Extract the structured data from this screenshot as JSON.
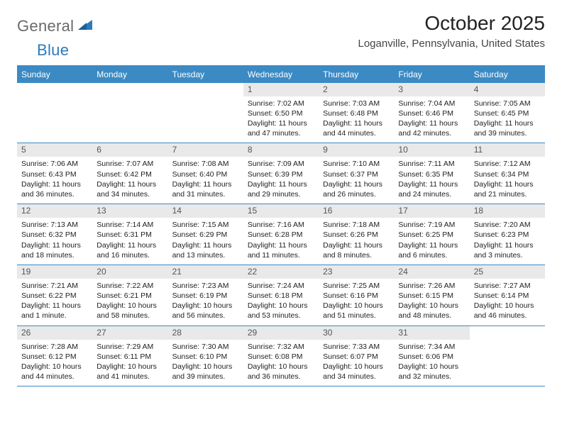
{
  "brand": {
    "word1": "General",
    "word2": "Blue"
  },
  "title": "October 2025",
  "location": "Loganville, Pennsylvania, United States",
  "colors": {
    "accent": "#3b8ac4",
    "header_bg": "#3b8ac4",
    "daynum_bg": "#e9e9e9",
    "text": "#222222",
    "logo_gray": "#6a6a6a",
    "logo_blue": "#2b7bbd"
  },
  "daysOfWeek": [
    "Sunday",
    "Monday",
    "Tuesday",
    "Wednesday",
    "Thursday",
    "Friday",
    "Saturday"
  ],
  "weeks": [
    [
      {
        "n": "",
        "sr": "",
        "ss": "",
        "dl": ""
      },
      {
        "n": "",
        "sr": "",
        "ss": "",
        "dl": ""
      },
      {
        "n": "",
        "sr": "",
        "ss": "",
        "dl": ""
      },
      {
        "n": "1",
        "sr": "Sunrise: 7:02 AM",
        "ss": "Sunset: 6:50 PM",
        "dl": "Daylight: 11 hours and 47 minutes."
      },
      {
        "n": "2",
        "sr": "Sunrise: 7:03 AM",
        "ss": "Sunset: 6:48 PM",
        "dl": "Daylight: 11 hours and 44 minutes."
      },
      {
        "n": "3",
        "sr": "Sunrise: 7:04 AM",
        "ss": "Sunset: 6:46 PM",
        "dl": "Daylight: 11 hours and 42 minutes."
      },
      {
        "n": "4",
        "sr": "Sunrise: 7:05 AM",
        "ss": "Sunset: 6:45 PM",
        "dl": "Daylight: 11 hours and 39 minutes."
      }
    ],
    [
      {
        "n": "5",
        "sr": "Sunrise: 7:06 AM",
        "ss": "Sunset: 6:43 PM",
        "dl": "Daylight: 11 hours and 36 minutes."
      },
      {
        "n": "6",
        "sr": "Sunrise: 7:07 AM",
        "ss": "Sunset: 6:42 PM",
        "dl": "Daylight: 11 hours and 34 minutes."
      },
      {
        "n": "7",
        "sr": "Sunrise: 7:08 AM",
        "ss": "Sunset: 6:40 PM",
        "dl": "Daylight: 11 hours and 31 minutes."
      },
      {
        "n": "8",
        "sr": "Sunrise: 7:09 AM",
        "ss": "Sunset: 6:39 PM",
        "dl": "Daylight: 11 hours and 29 minutes."
      },
      {
        "n": "9",
        "sr": "Sunrise: 7:10 AM",
        "ss": "Sunset: 6:37 PM",
        "dl": "Daylight: 11 hours and 26 minutes."
      },
      {
        "n": "10",
        "sr": "Sunrise: 7:11 AM",
        "ss": "Sunset: 6:35 PM",
        "dl": "Daylight: 11 hours and 24 minutes."
      },
      {
        "n": "11",
        "sr": "Sunrise: 7:12 AM",
        "ss": "Sunset: 6:34 PM",
        "dl": "Daylight: 11 hours and 21 minutes."
      }
    ],
    [
      {
        "n": "12",
        "sr": "Sunrise: 7:13 AM",
        "ss": "Sunset: 6:32 PM",
        "dl": "Daylight: 11 hours and 18 minutes."
      },
      {
        "n": "13",
        "sr": "Sunrise: 7:14 AM",
        "ss": "Sunset: 6:31 PM",
        "dl": "Daylight: 11 hours and 16 minutes."
      },
      {
        "n": "14",
        "sr": "Sunrise: 7:15 AM",
        "ss": "Sunset: 6:29 PM",
        "dl": "Daylight: 11 hours and 13 minutes."
      },
      {
        "n": "15",
        "sr": "Sunrise: 7:16 AM",
        "ss": "Sunset: 6:28 PM",
        "dl": "Daylight: 11 hours and 11 minutes."
      },
      {
        "n": "16",
        "sr": "Sunrise: 7:18 AM",
        "ss": "Sunset: 6:26 PM",
        "dl": "Daylight: 11 hours and 8 minutes."
      },
      {
        "n": "17",
        "sr": "Sunrise: 7:19 AM",
        "ss": "Sunset: 6:25 PM",
        "dl": "Daylight: 11 hours and 6 minutes."
      },
      {
        "n": "18",
        "sr": "Sunrise: 7:20 AM",
        "ss": "Sunset: 6:23 PM",
        "dl": "Daylight: 11 hours and 3 minutes."
      }
    ],
    [
      {
        "n": "19",
        "sr": "Sunrise: 7:21 AM",
        "ss": "Sunset: 6:22 PM",
        "dl": "Daylight: 11 hours and 1 minute."
      },
      {
        "n": "20",
        "sr": "Sunrise: 7:22 AM",
        "ss": "Sunset: 6:21 PM",
        "dl": "Daylight: 10 hours and 58 minutes."
      },
      {
        "n": "21",
        "sr": "Sunrise: 7:23 AM",
        "ss": "Sunset: 6:19 PM",
        "dl": "Daylight: 10 hours and 56 minutes."
      },
      {
        "n": "22",
        "sr": "Sunrise: 7:24 AM",
        "ss": "Sunset: 6:18 PM",
        "dl": "Daylight: 10 hours and 53 minutes."
      },
      {
        "n": "23",
        "sr": "Sunrise: 7:25 AM",
        "ss": "Sunset: 6:16 PM",
        "dl": "Daylight: 10 hours and 51 minutes."
      },
      {
        "n": "24",
        "sr": "Sunrise: 7:26 AM",
        "ss": "Sunset: 6:15 PM",
        "dl": "Daylight: 10 hours and 48 minutes."
      },
      {
        "n": "25",
        "sr": "Sunrise: 7:27 AM",
        "ss": "Sunset: 6:14 PM",
        "dl": "Daylight: 10 hours and 46 minutes."
      }
    ],
    [
      {
        "n": "26",
        "sr": "Sunrise: 7:28 AM",
        "ss": "Sunset: 6:12 PM",
        "dl": "Daylight: 10 hours and 44 minutes."
      },
      {
        "n": "27",
        "sr": "Sunrise: 7:29 AM",
        "ss": "Sunset: 6:11 PM",
        "dl": "Daylight: 10 hours and 41 minutes."
      },
      {
        "n": "28",
        "sr": "Sunrise: 7:30 AM",
        "ss": "Sunset: 6:10 PM",
        "dl": "Daylight: 10 hours and 39 minutes."
      },
      {
        "n": "29",
        "sr": "Sunrise: 7:32 AM",
        "ss": "Sunset: 6:08 PM",
        "dl": "Daylight: 10 hours and 36 minutes."
      },
      {
        "n": "30",
        "sr": "Sunrise: 7:33 AM",
        "ss": "Sunset: 6:07 PM",
        "dl": "Daylight: 10 hours and 34 minutes."
      },
      {
        "n": "31",
        "sr": "Sunrise: 7:34 AM",
        "ss": "Sunset: 6:06 PM",
        "dl": "Daylight: 10 hours and 32 minutes."
      },
      {
        "n": "",
        "sr": "",
        "ss": "",
        "dl": ""
      }
    ]
  ]
}
